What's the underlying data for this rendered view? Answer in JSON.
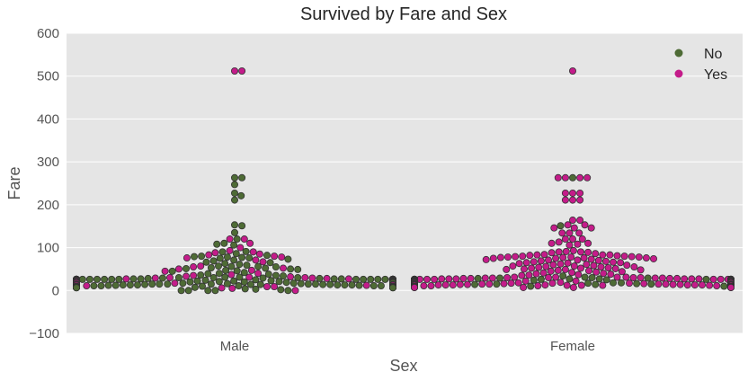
{
  "chart_data": {
    "type": "scatter",
    "subtype": "swarm",
    "title": "Survived by Fare and Sex",
    "xlabel": "Sex",
    "ylabel": "Fare",
    "categories": [
      "Male",
      "Female"
    ],
    "ylim": [
      -100,
      600
    ],
    "yticks": [
      -100,
      0,
      100,
      200,
      300,
      400,
      500,
      600
    ],
    "grid": true,
    "legend": {
      "placement": "top-right",
      "entries": [
        "No",
        "Yes"
      ]
    },
    "colors": {
      "No": "#4e6b35",
      "Yes": "#c41c8a",
      "background": "#e5e5e5",
      "grid": "#ffffff"
    },
    "series": [
      {
        "name": "No",
        "groups": [
          {
            "category": "Male",
            "values": [
              263,
              263,
              247,
              227,
              221,
              211,
              153,
              151,
              135,
              120,
              110,
              108,
              106,
              91,
              90,
              86,
              82,
              80,
              79,
              78,
              77,
              76,
              75,
              73,
              71,
              69,
              66,
              65,
              63,
              61,
              59,
              57,
              56,
              56,
              55,
              53,
              52,
              51,
              50,
              49,
              47,
              46,
              45,
              42,
              40,
              39,
              38,
              36,
              35,
              34,
              31,
              31,
              30,
              30,
              30,
              29,
              29,
              28,
              28,
              27,
              27,
              27,
              27,
              26,
              26,
              26,
              26,
              26,
              26,
              26,
              26,
              26,
              26,
              26,
              26,
              26,
              26,
              26,
              26,
              26,
              26,
              26,
              26,
              26,
              26,
              26,
              26,
              26,
              26,
              26,
              26,
              26,
              26,
              26,
              26,
              25,
              25,
              24,
              24,
              24,
              24,
              24,
              23,
              23,
              23,
              23,
              22,
              22,
              21,
              21,
              21,
              21,
              20,
              20,
              20,
              19,
              19,
              18,
              18,
              18,
              17,
              17,
              16,
              16,
              15,
              15,
              15,
              15,
              15,
              15,
              14,
              14,
              14,
              14,
              14,
              14,
              14,
              13,
              13,
              13,
              13,
              13,
              13,
              13,
              13,
              13,
              13,
              13,
              13,
              13,
              13,
              13,
              13,
              13,
              13,
              13,
              13,
              13,
              13,
              13,
              13,
              12,
              12,
              12,
              11,
              11,
              11,
              11,
              11,
              10,
              10,
              10,
              10,
              8,
              8,
              8,
              8,
              8,
              8,
              8,
              8,
              8,
              8,
              8,
              8,
              8,
              8,
              8,
              8,
              8,
              8,
              8,
              8,
              8,
              8,
              8,
              8,
              8,
              8,
              8,
              8,
              8,
              8,
              8,
              8,
              8,
              8,
              8,
              8,
              8,
              8,
              8,
              8,
              7.9,
              7.9,
              7.9,
              7.9,
              7.9,
              7.9,
              7.9,
              7.9,
              7.9,
              7.9,
              7.9,
              7.9,
              7.9,
              7.9,
              7.9,
              7.9,
              7.9,
              7.9,
              7.9,
              7.9,
              7.9,
              7.9,
              7.9,
              7.9,
              7.9,
              7.9,
              7.9,
              7.9,
              7.9,
              7.9,
              7.9,
              7.9,
              7.9,
              7.9,
              7.9,
              7.9,
              7.9,
              7.9,
              7.9,
              7.9,
              7.2,
              7.2,
              7.2,
              7.2,
              7.2,
              7.2,
              7.2,
              7.2,
              7.2,
              7.2,
              7.2,
              7.2,
              7.2,
              7.2,
              7.2,
              7.2,
              7.2,
              7.2,
              7.2,
              7.2,
              6.5,
              6.5,
              6.5,
              6.5,
              6.5,
              6.5,
              6.5,
              6.5,
              6.5,
              6.5,
              6.5,
              6.5,
              4,
              3,
              2,
              0,
              0,
              0,
              0,
              0
            ]
          },
          {
            "category": "Female",
            "values": [
              263,
              151,
              34,
              31,
              30,
              29,
              29,
              28,
              27,
              27,
              26,
              26,
              25,
              25,
              24,
              24,
              23,
              21,
              20,
              18,
              18,
              17,
              16,
              15,
              15,
              14,
              14,
              10,
              10,
              10,
              10,
              10,
              10,
              10,
              10,
              10,
              10,
              10,
              10,
              10,
              10,
              10,
              10,
              10,
              10,
              10,
              10,
              10,
              10,
              10,
              10,
              9,
              9,
              9,
              9,
              9,
              9,
              9,
              9,
              9,
              9,
              9,
              9,
              9,
              9,
              9,
              9,
              9,
              9,
              9,
              9,
              8,
              8,
              8,
              8,
              8,
              8,
              8,
              8,
              8,
              8,
              8,
              8,
              8,
              8
            ]
          }
        ]
      },
      {
        "name": "Yes",
        "groups": [
          {
            "category": "Male",
            "values": [
              512,
              512,
              120,
              120,
              110,
              100,
              93,
              90,
              88,
              85,
              83,
              80,
              78,
              76,
              71,
              67,
              57,
              55,
              52,
              50,
              47,
              45,
              40,
              37,
              35,
              33,
              32,
              31,
              30,
              30,
              29,
              29,
              28,
              27,
              27,
              26,
              26,
              26,
              26,
              26,
              26,
              26,
              26,
              26,
              26,
              25,
              24,
              23,
              22,
              20,
              19,
              18,
              17,
              15,
              14,
              13,
              13,
              13,
              13,
              12,
              11,
              10,
              9,
              9,
              8,
              8,
              8,
              8,
              8,
              8,
              7,
              7,
              6,
              5,
              0
            ]
          },
          {
            "category": "Female",
            "values": [
              512,
              263,
              263,
              263,
              263,
              227,
              227,
              227,
              211,
              211,
              211,
              164,
              164,
              153,
              153,
              146,
              146,
              146,
              134,
              134,
              134,
              120,
              120,
              120,
              113,
              110,
              110,
              108,
              106,
              93,
              91,
              90,
              90,
              89,
              88,
              86,
              84,
              83,
              83,
              83,
              82,
              81,
              80,
              80,
              79,
              79,
              78,
              78,
              78,
              77,
              77,
              76,
              76,
              75,
              75,
              74,
              73,
              72,
              71,
              71,
              70,
              69,
              68,
              67,
              66,
              65,
              65,
              64,
              63,
              62,
              61,
              60,
              59,
              58,
              57,
              57,
              56,
              55,
              55,
              54,
              53,
              52,
              52,
              51,
              50,
              49,
              49,
              48,
              47,
              46,
              45,
              44,
              43,
              42,
              41,
              40,
              39,
              38,
              37,
              36,
              35,
              31,
              31,
              31,
              31,
              30,
              30,
              30,
              30,
              29,
              29,
              29,
              29,
              28,
              28,
              28,
              28,
              27,
              27,
              27,
              27,
              27,
              27,
              26,
              26,
              26,
              26,
              26,
              26,
              26,
              26,
              26,
              26,
              26,
              26,
              26,
              26,
              26,
              26,
              26,
              26,
              26,
              26,
              25,
              25,
              25,
              24,
              24,
              24,
              24,
              23,
              23,
              23,
              23,
              22,
              22,
              22,
              21,
              21,
              21,
              20,
              20,
              20,
              19,
              19,
              19,
              18,
              18,
              18,
              17,
              17,
              17,
              16,
              16,
              16,
              15,
              15,
              15,
              15,
              15,
              15,
              14,
              14,
              14,
              14,
              14,
              14,
              13,
              13,
              13,
              13,
              13,
              13,
              13,
              13,
              13,
              13,
              13,
              13,
              13,
              13,
              13,
              13,
              13,
              13,
              13,
              13,
              13,
              13,
              13,
              13,
              13,
              13,
              13,
              13,
              13,
              13,
              13,
              13,
              13,
              13,
              13,
              13,
              12,
              12,
              12,
              12,
              11,
              11,
              11,
              11,
              10,
              10,
              10,
              10,
              9,
              9,
              9,
              9,
              8,
              8,
              8,
              8,
              8,
              8,
              8,
              8,
              8,
              8,
              8,
              8,
              8,
              8,
              8,
              8,
              8,
              8,
              8,
              8,
              7.9,
              7.9,
              7.9,
              7.9,
              7.9,
              7.9,
              7.9,
              7.9,
              7.9,
              7.9,
              7.9,
              7.9,
              7.9,
              7.9,
              7.9,
              7.9,
              7.9,
              7.9,
              7.9,
              7.9,
              7,
              7,
              7,
              7,
              7,
              7,
              7,
              7
            ]
          }
        ]
      }
    ]
  }
}
